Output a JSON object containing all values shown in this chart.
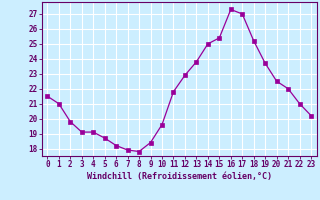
{
  "x": [
    0,
    1,
    2,
    3,
    4,
    5,
    6,
    7,
    8,
    9,
    10,
    11,
    12,
    13,
    14,
    15,
    16,
    17,
    18,
    19,
    20,
    21,
    22,
    23
  ],
  "y": [
    21.5,
    21.0,
    19.8,
    19.1,
    19.1,
    18.7,
    18.2,
    17.9,
    17.8,
    18.4,
    19.6,
    21.8,
    22.9,
    23.8,
    25.0,
    25.4,
    27.3,
    27.0,
    25.2,
    23.7,
    22.5,
    22.0,
    21.0,
    20.2
  ],
  "line_color": "#990099",
  "marker": "s",
  "marker_size": 2.5,
  "bg_color": "#cceeff",
  "grid_color": "#ffffff",
  "xlabel": "Windchill (Refroidissement éolien,°C)",
  "yticks": [
    18,
    19,
    20,
    21,
    22,
    23,
    24,
    25,
    26,
    27
  ],
  "xticks": [
    0,
    1,
    2,
    3,
    4,
    5,
    6,
    7,
    8,
    9,
    10,
    11,
    12,
    13,
    14,
    15,
    16,
    17,
    18,
    19,
    20,
    21,
    22,
    23
  ],
  "ylim": [
    17.5,
    27.8
  ],
  "xlim": [
    -0.5,
    23.5
  ],
  "axis_color": "#660066",
  "tick_color": "#660066",
  "label_color": "#660066",
  "font_family": "monospace",
  "tick_fontsize": 5.5,
  "xlabel_fontsize": 6.0
}
